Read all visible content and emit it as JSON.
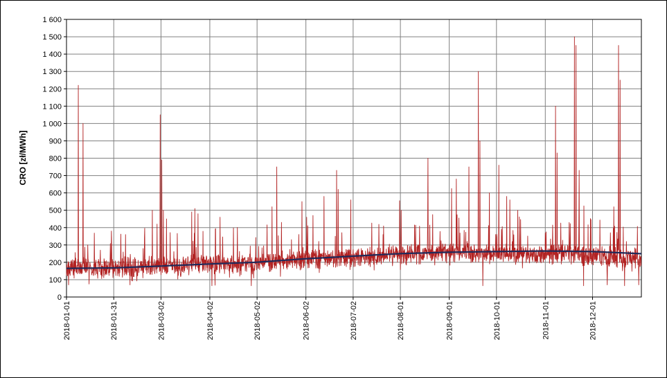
{
  "chart_data": {
    "type": "line",
    "title": "",
    "xlabel": "",
    "ylabel": "CRO [zł/MWh]",
    "ylim": [
      0,
      1600
    ],
    "y_ticks": [
      0,
      100,
      200,
      300,
      400,
      500,
      600,
      700,
      800,
      900,
      1000,
      1100,
      1200,
      1300,
      1400,
      1500,
      1600
    ],
    "y_tick_labels": [
      "0",
      "100",
      "200",
      "300",
      "400",
      "500",
      "600",
      "700",
      "800",
      "900",
      "1 000",
      "1 100",
      "1 200",
      "1 300",
      "1 400",
      "1 500",
      "1 600"
    ],
    "xlim": [
      "2018-01-01",
      "2018-12-31"
    ],
    "x_tick_labels": [
      "2018-01-01",
      "2018-01-31",
      "2018-03-02",
      "2018-04-02",
      "2018-05-02",
      "2018-06-02",
      "2018-07-02",
      "2018-08-01",
      "2018-09-01",
      "2018-10-01",
      "2018-11-01",
      "2018-12-01"
    ],
    "grid": true,
    "legend": "none",
    "series": [
      {
        "color": "#b22222",
        "style": "hourly price line",
        "baseline": [
          [
            "2018-01-01",
            165
          ],
          [
            "2018-02-01",
            170
          ],
          [
            "2018-03-01",
            180
          ],
          [
            "2018-04-01",
            190
          ],
          [
            "2018-05-01",
            195
          ],
          [
            "2018-06-01",
            220
          ],
          [
            "2018-07-01",
            225
          ],
          [
            "2018-08-01",
            245
          ],
          [
            "2018-09-01",
            255
          ],
          [
            "2018-10-01",
            250
          ],
          [
            "2018-11-01",
            250
          ],
          [
            "2018-12-01",
            240
          ],
          [
            "2018-12-31",
            220
          ]
        ],
        "spikes": [
          [
            "2018-01-08",
            1220
          ],
          [
            "2018-01-11",
            1000
          ],
          [
            "2018-01-14",
            300
          ],
          [
            "2018-01-22",
            270
          ],
          [
            "2018-01-29",
            380
          ],
          [
            "2018-02-07",
            360
          ],
          [
            "2018-02-19",
            340
          ],
          [
            "2018-02-24",
            500
          ],
          [
            "2018-02-27",
            420
          ],
          [
            "2018-03-01",
            1050
          ],
          [
            "2018-03-02",
            790
          ],
          [
            "2018-03-03",
            500
          ],
          [
            "2018-03-05",
            450
          ],
          [
            "2018-03-21",
            490
          ],
          [
            "2018-03-23",
            510
          ],
          [
            "2018-03-25",
            480
          ],
          [
            "2018-04-08",
            460
          ],
          [
            "2018-05-11",
            520
          ],
          [
            "2018-05-14",
            750
          ],
          [
            "2018-05-17",
            430
          ],
          [
            "2018-05-30",
            550
          ],
          [
            "2018-06-02",
            460
          ],
          [
            "2018-06-06",
            470
          ],
          [
            "2018-06-13",
            580
          ],
          [
            "2018-06-21",
            730
          ],
          [
            "2018-06-22",
            620
          ],
          [
            "2018-06-30",
            560
          ],
          [
            "2018-07-31",
            555
          ],
          [
            "2018-08-01",
            500
          ],
          [
            "2018-08-18",
            800
          ],
          [
            "2018-08-21",
            475
          ],
          [
            "2018-09-02",
            625
          ],
          [
            "2018-09-05",
            680
          ],
          [
            "2018-09-13",
            750
          ],
          [
            "2018-09-19",
            1300
          ],
          [
            "2018-09-20",
            900
          ],
          [
            "2018-09-26",
            600
          ],
          [
            "2018-10-02",
            760
          ],
          [
            "2018-10-07",
            580
          ],
          [
            "2018-10-09",
            560
          ],
          [
            "2018-10-14",
            500
          ],
          [
            "2018-11-07",
            1100
          ],
          [
            "2018-11-08",
            830
          ],
          [
            "2018-11-19",
            1500
          ],
          [
            "2018-11-20",
            1450
          ],
          [
            "2018-11-22",
            730
          ],
          [
            "2018-11-25",
            525
          ],
          [
            "2018-12-14",
            520
          ],
          [
            "2018-12-17",
            1450
          ],
          [
            "2018-12-18",
            1250
          ],
          [
            "2018-12-22",
            320
          ]
        ],
        "dips": [
          [
            "2018-01-02",
            70
          ],
          [
            "2018-01-15",
            75
          ],
          [
            "2018-02-10",
            70
          ],
          [
            "2018-04-03",
            65
          ],
          [
            "2018-04-05",
            68
          ],
          [
            "2018-04-28",
            65
          ],
          [
            "2018-09-22",
            65
          ],
          [
            "2018-11-25",
            65
          ],
          [
            "2018-12-10",
            70
          ],
          [
            "2018-12-21",
            65
          ],
          [
            "2018-12-30",
            70
          ]
        ]
      },
      {
        "color": "#1f2a5a",
        "style": "trend line",
        "points": [
          [
            "2018-01-01",
            165
          ],
          [
            "2018-02-01",
            168
          ],
          [
            "2018-03-01",
            178
          ],
          [
            "2018-04-01",
            190
          ],
          [
            "2018-05-01",
            200
          ],
          [
            "2018-06-01",
            220
          ],
          [
            "2018-07-01",
            235
          ],
          [
            "2018-08-01",
            250
          ],
          [
            "2018-09-01",
            258
          ],
          [
            "2018-10-01",
            262
          ],
          [
            "2018-11-01",
            265
          ],
          [
            "2018-12-01",
            262
          ],
          [
            "2018-12-31",
            250
          ]
        ]
      }
    ]
  }
}
